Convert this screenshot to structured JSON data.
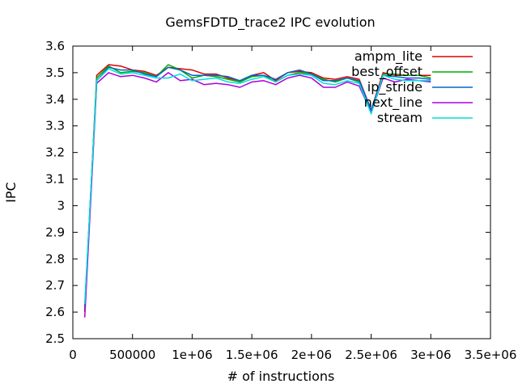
{
  "chart_data": {
    "type": "line",
    "title": "GemsFDTD_trace2 IPC evolution",
    "xlabel": "# of instructions",
    "ylabel": "IPC",
    "xlim": [
      0,
      3500000
    ],
    "ylim": [
      2.5,
      3.6
    ],
    "xticks": [
      {
        "value": 0,
        "label": "0"
      },
      {
        "value": 500000,
        "label": "500000"
      },
      {
        "value": 1000000,
        "label": "1e+06"
      },
      {
        "value": 1500000,
        "label": "1.5e+06"
      },
      {
        "value": 2000000,
        "label": "2e+06"
      },
      {
        "value": 2500000,
        "label": "2.5e+06"
      },
      {
        "value": 3000000,
        "label": "3e+06"
      },
      {
        "value": 3500000,
        "label": "3.5e+06"
      }
    ],
    "yticks": [
      {
        "value": 2.5,
        "label": "2.5"
      },
      {
        "value": 2.6,
        "label": "2.6"
      },
      {
        "value": 2.7,
        "label": "2.7"
      },
      {
        "value": 2.8,
        "label": "2.8"
      },
      {
        "value": 2.9,
        "label": "2.9"
      },
      {
        "value": 3.0,
        "label": "3"
      },
      {
        "value": 3.1,
        "label": "3.1"
      },
      {
        "value": 3.2,
        "label": "3.2"
      },
      {
        "value": 3.3,
        "label": "3.3"
      },
      {
        "value": 3.4,
        "label": "3.4"
      },
      {
        "value": 3.5,
        "label": "3.5"
      },
      {
        "value": 3.6,
        "label": "3.6"
      }
    ],
    "grid": false,
    "legend_position": "top-right",
    "x": [
      100000,
      200000,
      300000,
      400000,
      500000,
      600000,
      700000,
      800000,
      900000,
      1000000,
      1100000,
      1200000,
      1300000,
      1400000,
      1500000,
      1600000,
      1700000,
      1800000,
      1900000,
      2000000,
      2100000,
      2200000,
      2300000,
      2400000,
      2500000,
      2600000,
      2700000,
      2800000,
      2900000,
      3000000
    ],
    "series": [
      {
        "name": "ampm_lite",
        "color": "#dd0000",
        "values": [
          2.6,
          3.49,
          3.53,
          3.525,
          3.51,
          3.505,
          3.49,
          3.52,
          3.515,
          3.51,
          3.495,
          3.495,
          3.48,
          3.47,
          3.49,
          3.5,
          3.47,
          3.5,
          3.505,
          3.5,
          3.48,
          3.475,
          3.485,
          3.475,
          3.36,
          3.5,
          3.49,
          3.49,
          3.49,
          3.49
        ]
      },
      {
        "name": "best_offset",
        "color": "#00aa00",
        "values": [
          2.61,
          3.48,
          3.525,
          3.5,
          3.505,
          3.5,
          3.485,
          3.53,
          3.51,
          3.48,
          3.49,
          3.485,
          3.475,
          3.465,
          3.485,
          3.49,
          3.465,
          3.49,
          3.5,
          3.495,
          3.475,
          3.465,
          3.48,
          3.465,
          3.35,
          3.495,
          3.495,
          3.49,
          3.49,
          3.48
        ]
      },
      {
        "name": "ip_stride",
        "color": "#0066cc",
        "values": [
          2.62,
          3.47,
          3.52,
          3.51,
          3.51,
          3.495,
          3.485,
          3.52,
          3.51,
          3.49,
          3.49,
          3.49,
          3.485,
          3.47,
          3.49,
          3.49,
          3.475,
          3.5,
          3.51,
          3.495,
          3.47,
          3.47,
          3.48,
          3.47,
          3.36,
          3.49,
          3.485,
          3.48,
          3.48,
          3.475
        ]
      },
      {
        "name": "next_line",
        "color": "#aa00dd",
        "values": [
          2.58,
          3.46,
          3.5,
          3.485,
          3.49,
          3.48,
          3.465,
          3.5,
          3.47,
          3.475,
          3.455,
          3.46,
          3.455,
          3.445,
          3.465,
          3.47,
          3.455,
          3.48,
          3.49,
          3.48,
          3.445,
          3.445,
          3.465,
          3.45,
          3.35,
          3.48,
          3.465,
          3.475,
          3.47,
          3.465
        ]
      },
      {
        "name": "stream",
        "color": "#00dddd",
        "values": [
          2.63,
          3.47,
          3.515,
          3.495,
          3.5,
          3.49,
          3.48,
          3.48,
          3.495,
          3.47,
          3.475,
          3.48,
          3.465,
          3.46,
          3.475,
          3.485,
          3.465,
          3.49,
          3.495,
          3.49,
          3.46,
          3.455,
          3.47,
          3.46,
          3.345,
          3.49,
          3.475,
          3.47,
          3.47,
          3.47
        ]
      }
    ]
  }
}
